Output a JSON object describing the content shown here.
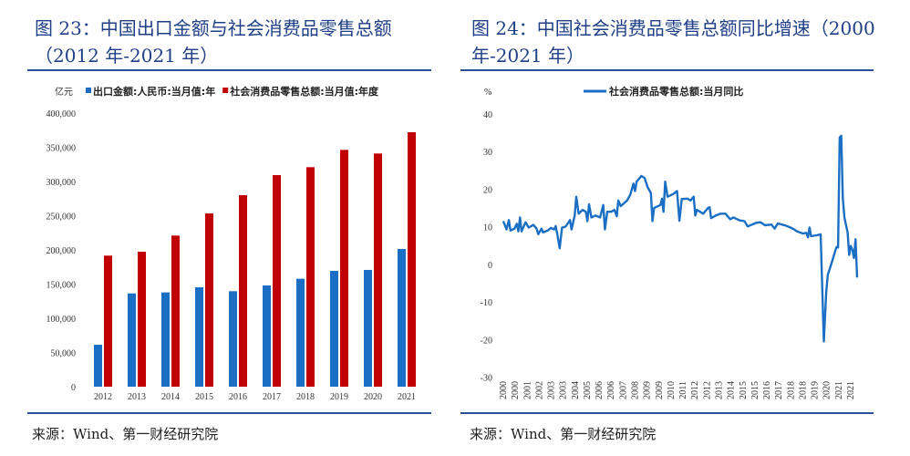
{
  "left": {
    "title_line1": "图 23：中国出口金额与社会消费品零售总额",
    "title_line2": "（2012 年-2021 年）",
    "source": "来源：Wind、第一财经研究院"
  },
  "right": {
    "title_line1": "图 24：中国社会消费品零售总额同比增速（2000",
    "title_line2": "年-2021 年）",
    "source": "来源：Wind、第一财经研究院"
  },
  "chart_data": [
    {
      "type": "bar",
      "unit_label": "亿元",
      "categories": [
        "2012",
        "2013",
        "2014",
        "2015",
        "2016",
        "2017",
        "2018",
        "2019",
        "2020",
        "2021"
      ],
      "series": [
        {
          "name": "出口金额:人民币:当月值:年",
          "color": "#1a6fc4",
          "values": [
            61300,
            136400,
            137800,
            145300,
            139600,
            148000,
            157800,
            169300,
            170700,
            201300
          ]
        },
        {
          "name": "社会消费品零售总额:当月值:年度",
          "color": "#c00000",
          "values": [
            191600,
            197300,
            220900,
            253300,
            280000,
            309300,
            320900,
            346200,
            340900,
            372000
          ]
        }
      ],
      "ylim": [
        0,
        400000
      ],
      "yticks": [
        "0",
        "50,000",
        "100,000",
        "150,000",
        "200,000",
        "250,000",
        "300,000",
        "350,000",
        "400,000"
      ],
      "legend": "top",
      "grid": false
    },
    {
      "type": "line",
      "unit_label": "%",
      "series": [
        {
          "name": "社会消费品零售总额:当月同比",
          "color": "#1a6fc4",
          "points": [
            [
              2000.0,
              11.5
            ],
            [
              2000.2,
              9.3
            ],
            [
              2000.35,
              11.8
            ],
            [
              2000.45,
              9.0
            ],
            [
              2000.7,
              9.5
            ],
            [
              2000.85,
              10.8
            ],
            [
              2000.95,
              8.8
            ],
            [
              2001.05,
              12.5
            ],
            [
              2001.15,
              8.8
            ],
            [
              2001.4,
              11.2
            ],
            [
              2001.6,
              9.8
            ],
            [
              2001.9,
              10.5
            ],
            [
              2002.1,
              9.5
            ],
            [
              2002.2,
              8.0
            ],
            [
              2002.4,
              9.5
            ],
            [
              2002.5,
              8.5
            ],
            [
              2002.8,
              9.0
            ],
            [
              2003.0,
              9.7
            ],
            [
              2003.2,
              9.3
            ],
            [
              2003.3,
              10.2
            ],
            [
              2003.4,
              8.0
            ],
            [
              2003.55,
              4.3
            ],
            [
              2003.7,
              9.8
            ],
            [
              2003.9,
              10.0
            ],
            [
              2004.0,
              10.5
            ],
            [
              2004.2,
              11.8
            ],
            [
              2004.3,
              9.3
            ],
            [
              2004.5,
              13.0
            ],
            [
              2004.6,
              18.0
            ],
            [
              2004.75,
              13.5
            ],
            [
              2005.0,
              14.5
            ],
            [
              2005.2,
              14.0
            ],
            [
              2005.3,
              11.5
            ],
            [
              2005.4,
              16.0
            ],
            [
              2005.55,
              12.5
            ],
            [
              2005.8,
              13.0
            ],
            [
              2006.1,
              12.5
            ],
            [
              2006.3,
              15.8
            ],
            [
              2006.4,
              9.3
            ],
            [
              2006.55,
              14.0
            ],
            [
              2006.8,
              14.0
            ],
            [
              2007.0,
              14.5
            ],
            [
              2007.15,
              12.8
            ],
            [
              2007.25,
              17.0
            ],
            [
              2007.4,
              15.5
            ],
            [
              2007.8,
              17.0
            ],
            [
              2008.0,
              18.5
            ],
            [
              2008.2,
              21.5
            ],
            [
              2008.3,
              19.5
            ],
            [
              2008.4,
              22.0
            ],
            [
              2008.7,
              23.5
            ],
            [
              2008.9,
              23.0
            ],
            [
              2009.1,
              20.5
            ],
            [
              2009.3,
              19.0
            ],
            [
              2009.4,
              11.5
            ],
            [
              2009.5,
              15.0
            ],
            [
              2009.9,
              15.8
            ],
            [
              2010.0,
              17.5
            ],
            [
              2010.1,
              14.0
            ],
            [
              2010.2,
              22.0
            ],
            [
              2010.35,
              18.0
            ],
            [
              2010.7,
              18.7
            ],
            [
              2010.95,
              19.5
            ],
            [
              2011.1,
              11.6
            ],
            [
              2011.25,
              17.4
            ],
            [
              2011.6,
              17.5
            ],
            [
              2011.8,
              17.0
            ],
            [
              2012.0,
              18.0
            ],
            [
              2012.1,
              13.0
            ],
            [
              2012.2,
              14.5
            ],
            [
              2012.6,
              13.5
            ],
            [
              2012.9,
              15.0
            ],
            [
              2013.0,
              15.2
            ],
            [
              2013.1,
              12.3
            ],
            [
              2013.4,
              13.0
            ],
            [
              2013.7,
              13.5
            ],
            [
              2014.0,
              13.5
            ],
            [
              2014.3,
              12.0
            ],
            [
              2014.5,
              12.5
            ],
            [
              2014.9,
              11.7
            ],
            [
              2015.2,
              11.5
            ],
            [
              2015.4,
              10.1
            ],
            [
              2015.9,
              11.0
            ],
            [
              2016.2,
              11.2
            ],
            [
              2016.5,
              10.4
            ],
            [
              2016.9,
              10.6
            ],
            [
              2017.1,
              9.5
            ],
            [
              2017.3,
              10.9
            ],
            [
              2017.8,
              10.3
            ],
            [
              2018.1,
              9.8
            ],
            [
              2018.3,
              9.4
            ],
            [
              2018.5,
              8.8
            ],
            [
              2018.9,
              8.2
            ],
            [
              2019.1,
              8.4
            ],
            [
              2019.2,
              7.2
            ],
            [
              2019.3,
              9.8
            ],
            [
              2019.4,
              7.5
            ],
            [
              2019.8,
              7.8
            ],
            [
              2020.0,
              8.0
            ],
            [
              2020.2,
              -20.5
            ],
            [
              2020.35,
              -7.5
            ],
            [
              2020.45,
              -2.8
            ],
            [
              2020.7,
              0.5
            ],
            [
              2020.9,
              3.3
            ],
            [
              2021.0,
              4.6
            ],
            [
              2021.1,
              4.5
            ],
            [
              2021.2,
              33.8
            ],
            [
              2021.3,
              34.2
            ],
            [
              2021.4,
              17.7
            ],
            [
              2021.5,
              12.4
            ],
            [
              2021.7,
              8.5
            ],
            [
              2021.8,
              2.5
            ],
            [
              2021.9,
              4.9
            ],
            [
              2022.0,
              3.9
            ],
            [
              2022.1,
              1.7
            ],
            [
              2022.2,
              6.7
            ],
            [
              2022.3,
              -3.5
            ]
          ]
        }
      ],
      "xlim": [
        2000.0,
        2022.3
      ],
      "xticks": [
        "2000",
        "2000",
        "2001",
        "2002",
        "2003",
        "2003",
        "2004",
        "2005",
        "2006",
        "2006",
        "2007",
        "2008",
        "2009",
        "2009",
        "2010",
        "2011",
        "2012",
        "2012",
        "2013",
        "2014",
        "2015",
        "2015",
        "2016",
        "2017",
        "2018",
        "2018",
        "2019",
        "2020",
        "2021",
        "2021"
      ],
      "ylim": [
        -30,
        40
      ],
      "yticks": [
        "-30",
        "-20",
        "-10",
        "0",
        "10",
        "20",
        "30",
        "40"
      ],
      "legend": "top",
      "grid": false
    }
  ]
}
